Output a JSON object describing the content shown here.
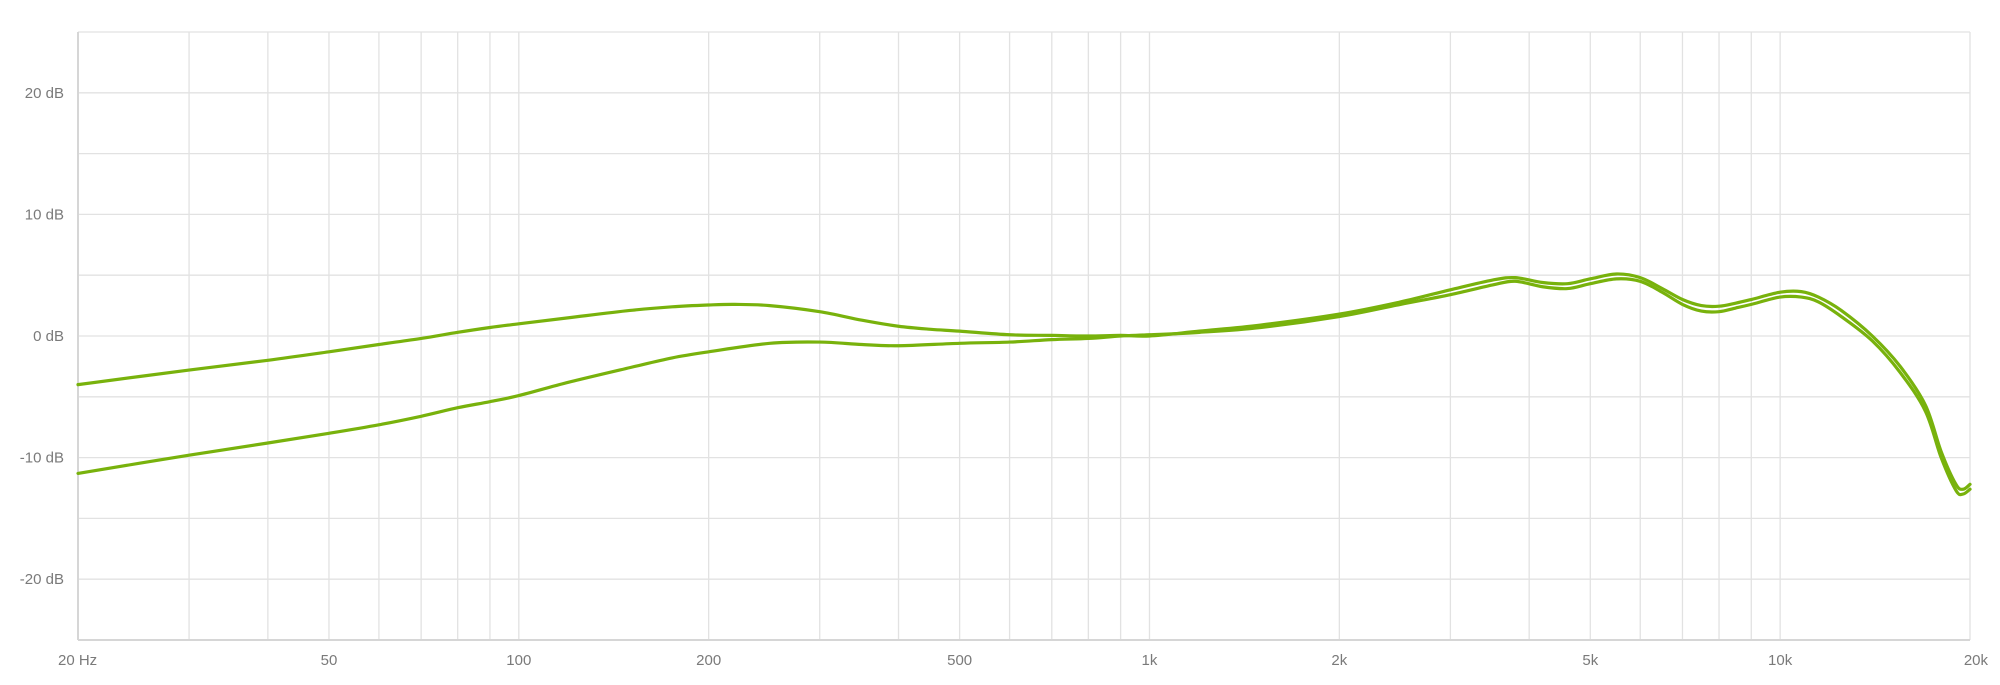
{
  "chart_data": {
    "type": "line",
    "title": "",
    "xlabel": "",
    "ylabel": "",
    "x_scale": "log",
    "xlim": [
      20,
      20000
    ],
    "ylim": [
      -25,
      25
    ],
    "grid": true,
    "legend": "none",
    "x_ticks": [
      {
        "value": 20,
        "label": "20 Hz"
      },
      {
        "value": 50,
        "label": "50"
      },
      {
        "value": 100,
        "label": "100"
      },
      {
        "value": 200,
        "label": "200"
      },
      {
        "value": 500,
        "label": "500"
      },
      {
        "value": 1000,
        "label": "1k"
      },
      {
        "value": 2000,
        "label": "2k"
      },
      {
        "value": 5000,
        "label": "5k"
      },
      {
        "value": 10000,
        "label": "10k"
      },
      {
        "value": 20000,
        "label": "20k"
      }
    ],
    "x_minor_gridlines": [
      30,
      40,
      60,
      70,
      80,
      90,
      300,
      400,
      600,
      700,
      800,
      900,
      3000,
      4000,
      6000,
      7000,
      8000,
      9000
    ],
    "y_ticks": [
      {
        "value": 20,
        "label": "20 dB"
      },
      {
        "value": 10,
        "label": "10 dB"
      },
      {
        "value": 0,
        "label": "0 dB"
      },
      {
        "value": -10,
        "label": "-10 dB"
      },
      {
        "value": -20,
        "label": "-20 dB"
      }
    ],
    "y_minor_gridlines": [
      25,
      15,
      5,
      -5,
      -15,
      -25
    ],
    "series": [
      {
        "color": "#78b20c",
        "points": [
          [
            20,
            -4.0
          ],
          [
            30,
            -2.8
          ],
          [
            40,
            -2.0
          ],
          [
            50,
            -1.3
          ],
          [
            60,
            -0.7
          ],
          [
            70,
            -0.2
          ],
          [
            80,
            0.3
          ],
          [
            90,
            0.7
          ],
          [
            100,
            1.0
          ],
          [
            120,
            1.5
          ],
          [
            150,
            2.1
          ],
          [
            175,
            2.4
          ],
          [
            200,
            2.55
          ],
          [
            220,
            2.6
          ],
          [
            250,
            2.5
          ],
          [
            300,
            2.0
          ],
          [
            350,
            1.3
          ],
          [
            400,
            0.8
          ],
          [
            450,
            0.55
          ],
          [
            500,
            0.4
          ],
          [
            600,
            0.1
          ],
          [
            700,
            0.05
          ],
          [
            800,
            0.0
          ],
          [
            900,
            0.05
          ],
          [
            1000,
            0.0
          ],
          [
            1200,
            0.4
          ],
          [
            1500,
            0.9
          ],
          [
            2000,
            1.8
          ],
          [
            2500,
            2.8
          ],
          [
            3000,
            3.8
          ],
          [
            3500,
            4.6
          ],
          [
            3800,
            4.8
          ],
          [
            4200,
            4.4
          ],
          [
            4600,
            4.3
          ],
          [
            5000,
            4.7
          ],
          [
            5500,
            5.1
          ],
          [
            6000,
            4.8
          ],
          [
            6500,
            3.9
          ],
          [
            7000,
            3.0
          ],
          [
            7500,
            2.5
          ],
          [
            8000,
            2.45
          ],
          [
            8500,
            2.7
          ],
          [
            9000,
            3.0
          ],
          [
            10000,
            3.6
          ],
          [
            10800,
            3.65
          ],
          [
            11500,
            3.2
          ],
          [
            12500,
            2.1
          ],
          [
            14000,
            0.0
          ],
          [
            15500,
            -2.5
          ],
          [
            17000,
            -5.7
          ],
          [
            18000,
            -9.5
          ],
          [
            19000,
            -12.2
          ],
          [
            19500,
            -12.6
          ],
          [
            20000,
            -12.2
          ]
        ]
      },
      {
        "color": "#78b20c",
        "points": [
          [
            20,
            -11.3
          ],
          [
            30,
            -9.8
          ],
          [
            40,
            -8.8
          ],
          [
            50,
            -8.0
          ],
          [
            60,
            -7.3
          ],
          [
            70,
            -6.6
          ],
          [
            80,
            -5.9
          ],
          [
            90,
            -5.4
          ],
          [
            100,
            -4.9
          ],
          [
            120,
            -3.8
          ],
          [
            150,
            -2.6
          ],
          [
            175,
            -1.8
          ],
          [
            200,
            -1.3
          ],
          [
            250,
            -0.6
          ],
          [
            300,
            -0.5
          ],
          [
            350,
            -0.7
          ],
          [
            400,
            -0.8
          ],
          [
            500,
            -0.6
          ],
          [
            600,
            -0.5
          ],
          [
            700,
            -0.3
          ],
          [
            800,
            -0.2
          ],
          [
            900,
            0.0
          ],
          [
            1000,
            0.1
          ],
          [
            1200,
            0.3
          ],
          [
            1500,
            0.7
          ],
          [
            2000,
            1.6
          ],
          [
            2500,
            2.6
          ],
          [
            3000,
            3.4
          ],
          [
            3500,
            4.2
          ],
          [
            3800,
            4.5
          ],
          [
            4200,
            4.05
          ],
          [
            4600,
            3.9
          ],
          [
            5000,
            4.3
          ],
          [
            5500,
            4.7
          ],
          [
            6000,
            4.5
          ],
          [
            6500,
            3.6
          ],
          [
            7000,
            2.6
          ],
          [
            7500,
            2.05
          ],
          [
            8000,
            2.0
          ],
          [
            8500,
            2.3
          ],
          [
            9000,
            2.6
          ],
          [
            10000,
            3.2
          ],
          [
            10800,
            3.2
          ],
          [
            11500,
            2.8
          ],
          [
            12500,
            1.6
          ],
          [
            14000,
            -0.4
          ],
          [
            15500,
            -3.0
          ],
          [
            17000,
            -6.2
          ],
          [
            18000,
            -10.0
          ],
          [
            19000,
            -12.7
          ],
          [
            19500,
            -13.0
          ],
          [
            20000,
            -12.6
          ]
        ]
      }
    ]
  }
}
